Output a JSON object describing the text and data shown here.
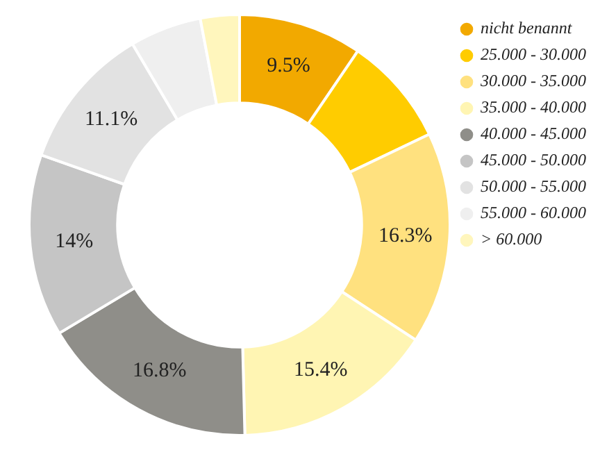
{
  "chart_data": {
    "type": "donut",
    "categories": [
      "nicht benannt",
      "25.000 - 30.000",
      "30.000 - 35.000",
      "35.000 - 40.000",
      "40.000 - 45.000",
      "45.000 - 50.000",
      "50.000 - 55.000",
      "55.000 - 60.000",
      "> 60.000"
    ],
    "values": [
      9.5,
      8.4,
      16.3,
      15.4,
      16.8,
      14,
      11.1,
      5.5,
      3.0
    ],
    "value_labels": [
      "9.5%",
      null,
      "16.3%",
      "15.4%",
      "16.8%",
      "14%",
      "11.1%",
      null,
      null
    ],
    "colors": [
      "#f2a900",
      "#ffcc00",
      "#ffe17f",
      "#fff5b3",
      "#8f8e89",
      "#c5c5c5",
      "#e2e2e2",
      "#efefef",
      "#fff6bd"
    ],
    "legend": "right"
  }
}
